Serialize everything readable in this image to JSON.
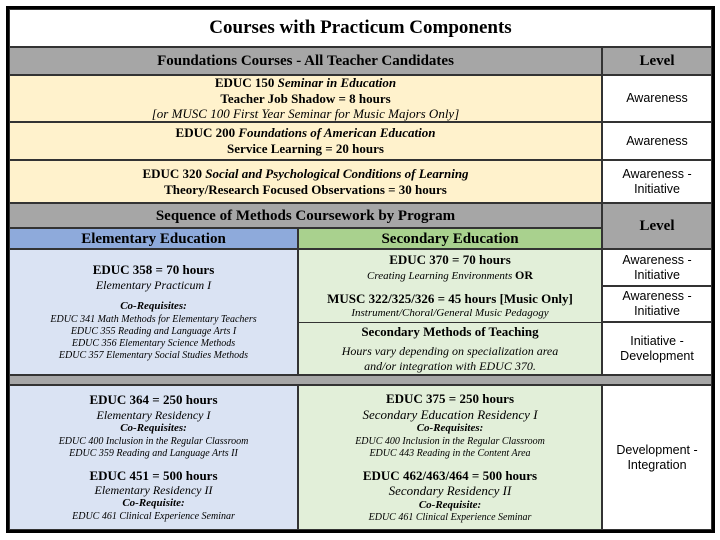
{
  "title": "Courses with Practicum Components",
  "foundations": {
    "header": "Foundations Courses - All Teacher Candidates",
    "level_header": "Level",
    "rows": [
      {
        "code": "EDUC 150",
        "name": "Seminar in Education",
        "detail": "Teacher Job Shadow = 8 hours",
        "note": "[or MUSC 100 First Year Seminar for Music Majors Only]",
        "level": "Awareness"
      },
      {
        "code": "EDUC 200",
        "name": "Foundations of American Education",
        "detail": "Service Learning = 20 hours",
        "level": "Awareness"
      },
      {
        "code": "EDUC 320",
        "name": "Social and Psychological Conditions of Learning",
        "detail": "Theory/Research Focused Observations = 30 hours",
        "level": "Awareness - Initiative"
      }
    ]
  },
  "methods": {
    "header": "Sequence of Methods Coursework by Program",
    "level_header": "Level",
    "elementary_header": "Elementary Education",
    "secondary_header": "Secondary Education",
    "elementary": {
      "title": "EDUC 358 = 70 hours",
      "subtitle": "Elementary Practicum I",
      "coreq_label": "Co-Requisites:",
      "coreqs": [
        "EDUC 341 Math Methods for Elementary Teachers",
        "EDUC 355 Reading and Language Arts I",
        "EDUC 356 Elementary Science Methods",
        "EDUC 357 Elementary Social Studies Methods"
      ]
    },
    "secondary": [
      {
        "title": "EDUC 370 = 70 hours",
        "subtitle": "Creating Learning Environments",
        "suffix": "OR",
        "level": "Awareness - Initiative"
      },
      {
        "title": "MUSC 322/325/326 = 45 hours [Music Only]",
        "subtitle": "Instrument/Choral/General Music Pedagogy",
        "level": "Awareness - Initiative"
      },
      {
        "title": "Secondary Methods of Teaching",
        "line1": "Hours vary depending on specialization area",
        "line2": "and/or integration with EDUC 370.",
        "level": "Initiative - Development"
      }
    ]
  },
  "residency": {
    "elementary": [
      {
        "title": "EDUC 364 = 250 hours",
        "subtitle": "Elementary Residency I",
        "coreq_label": "Co-Requisites:",
        "coreqs": [
          "EDUC 400 Inclusion in the Regular Classroom",
          "EDUC 359 Reading and Language Arts II"
        ]
      },
      {
        "title": "EDUC 451 = 500 hours",
        "subtitle": "Elementary Residency II",
        "coreq_label": "Co-Requisite:",
        "coreqs": [
          "EDUC 461 Clinical Experience Seminar"
        ]
      }
    ],
    "secondary": [
      {
        "title": "EDUC 375 = 250 hours",
        "subtitle": "Secondary Education Residency I",
        "coreq_label": "Co-Requisites:",
        "coreqs": [
          "EDUC 400 Inclusion in the Regular Classroom",
          "EDUC 443 Reading in the Content Area"
        ]
      },
      {
        "title": "EDUC 462/463/464 = 500 hours",
        "subtitle": "Secondary Residency II",
        "coreq_label": "Co-Requisite:",
        "coreqs": [
          "EDUC 461 Clinical Experience Seminar"
        ]
      }
    ],
    "level": "Development - Integration"
  },
  "colors": {
    "header_grey": "#a6a6a6",
    "foundation_cream": "#fff2cc",
    "elementary_blue": "#dae3f3",
    "elementary_header": "#8eaadb",
    "secondary_green": "#e2efd9",
    "secondary_header": "#a9d18e"
  }
}
